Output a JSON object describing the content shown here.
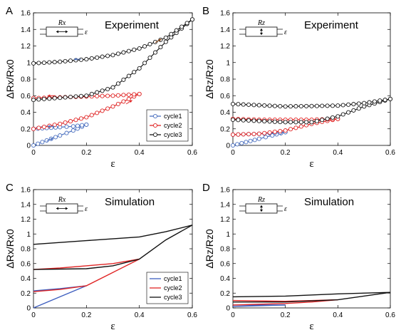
{
  "chart_data": [
    {
      "panel": "A",
      "type": "line",
      "title": "Experiment",
      "xlabel": "ε",
      "ylabel": "ΔRx/Rx0",
      "inset_label": "Rx",
      "inset_strain": "ε",
      "xlim": [
        0,
        0.6
      ],
      "ylim": [
        0,
        1.6
      ],
      "xticks": [
        "0",
        "0.2",
        "0.4",
        "0.6"
      ],
      "yticks": [
        "0",
        "0.2",
        "0.4",
        "0.6",
        "0.8",
        "1",
        "1.2",
        "1.4",
        "1.6"
      ],
      "markers": true,
      "legend": [
        "cycle1",
        "cycle2",
        "cycle3"
      ],
      "series": [
        {
          "name": "cycle1",
          "color": "#4a6fbf",
          "loading": [
            [
              0,
              0
            ],
            [
              0.05,
              0.06
            ],
            [
              0.1,
              0.12
            ],
            [
              0.15,
              0.18
            ],
            [
              0.2,
              0.25
            ]
          ],
          "unloading": [
            [
              0.2,
              0.25
            ],
            [
              0.15,
              0.23
            ],
            [
              0.1,
              0.22
            ],
            [
              0.05,
              0.21
            ],
            [
              0,
              0.2
            ]
          ]
        },
        {
          "name": "cycle2",
          "color": "#e02525",
          "loading": [
            [
              0,
              0.2
            ],
            [
              0.1,
              0.26
            ],
            [
              0.2,
              0.34
            ],
            [
              0.3,
              0.47
            ],
            [
              0.4,
              0.62
            ]
          ],
          "unloading": [
            [
              0.4,
              0.62
            ],
            [
              0.3,
              0.6
            ],
            [
              0.2,
              0.59
            ],
            [
              0.1,
              0.58
            ],
            [
              0,
              0.57
            ]
          ]
        },
        {
          "name": "cycle3",
          "color": "#1a1a1a",
          "loading": [
            [
              0,
              0.55
            ],
            [
              0.2,
              0.6
            ],
            [
              0.3,
              0.7
            ],
            [
              0.4,
              0.93
            ],
            [
              0.5,
              1.25
            ],
            [
              0.6,
              1.52
            ]
          ],
          "unloading": [
            [
              0.6,
              1.52
            ],
            [
              0.5,
              1.3
            ],
            [
              0.4,
              1.17
            ],
            [
              0.3,
              1.09
            ],
            [
              0.2,
              1.04
            ],
            [
              0.1,
              1.01
            ],
            [
              0,
              0.99
            ]
          ]
        }
      ]
    },
    {
      "panel": "B",
      "type": "line",
      "title": "Experiment",
      "xlabel": "ε",
      "ylabel": "ΔRz/Rz0",
      "inset_label": "Rz",
      "inset_strain": "ε",
      "xlim": [
        0,
        0.6
      ],
      "ylim": [
        0,
        1.6
      ],
      "xticks": [
        "0",
        "0.2",
        "0.4",
        "0.6"
      ],
      "yticks": [
        "0",
        "0.2",
        "0.4",
        "0.6",
        "0.8",
        "1",
        "1.2",
        "1.4",
        "1.6"
      ],
      "markers": true,
      "series": [
        {
          "name": "cycle1",
          "color": "#4a6fbf",
          "loading": [
            [
              0,
              0
            ],
            [
              0.05,
              0.04
            ],
            [
              0.1,
              0.08
            ],
            [
              0.15,
              0.12
            ],
            [
              0.2,
              0.16
            ]
          ],
          "unloading": [
            [
              0.2,
              0.16
            ],
            [
              0.1,
              0.14
            ],
            [
              0,
              0.13
            ]
          ]
        },
        {
          "name": "cycle2",
          "color": "#e02525",
          "loading": [
            [
              0,
              0.13
            ],
            [
              0.1,
              0.14
            ],
            [
              0.2,
              0.18
            ],
            [
              0.3,
              0.26
            ],
            [
              0.4,
              0.32
            ]
          ],
          "unloading": [
            [
              0.4,
              0.32
            ],
            [
              0.3,
              0.31
            ],
            [
              0.2,
              0.31
            ],
            [
              0.1,
              0.31
            ],
            [
              0,
              0.32
            ]
          ]
        },
        {
          "name": "cycle3",
          "color": "#1a1a1a",
          "loading": [
            [
              0,
              0.31
            ],
            [
              0.2,
              0.28
            ],
            [
              0.3,
              0.28
            ],
            [
              0.4,
              0.35
            ],
            [
              0.5,
              0.47
            ],
            [
              0.6,
              0.56
            ]
          ],
          "unloading": [
            [
              0.6,
              0.56
            ],
            [
              0.5,
              0.51
            ],
            [
              0.4,
              0.48
            ],
            [
              0.2,
              0.47
            ],
            [
              0,
              0.5
            ]
          ]
        }
      ]
    },
    {
      "panel": "C",
      "type": "line",
      "title": "Simulation",
      "xlabel": "ε",
      "ylabel": "ΔRx/Rx0",
      "inset_label": "Rx",
      "inset_strain": "ε",
      "xlim": [
        0,
        0.6
      ],
      "ylim": [
        0,
        1.6
      ],
      "xticks": [
        "0",
        "0.2",
        "0.4",
        "0.6"
      ],
      "yticks": [
        "0",
        "0.2",
        "0.4",
        "0.6",
        "0.8",
        "1",
        "1.2",
        "1.4",
        "1.6"
      ],
      "markers": false,
      "legend": [
        "cycle1",
        "cycle2",
        "cycle3"
      ],
      "series": [
        {
          "name": "cycle1",
          "color": "#3f5fbf",
          "loading": [
            [
              0,
              0
            ],
            [
              0.1,
              0.15
            ],
            [
              0.2,
              0.3
            ]
          ],
          "unloading": [
            [
              0.2,
              0.3
            ],
            [
              0.1,
              0.26
            ],
            [
              0,
              0.23
            ]
          ]
        },
        {
          "name": "cycle2",
          "color": "#e02525",
          "loading": [
            [
              0,
              0.22
            ],
            [
              0.1,
              0.25
            ],
            [
              0.2,
              0.3
            ],
            [
              0.3,
              0.48
            ],
            [
              0.4,
              0.66
            ]
          ],
          "unloading": [
            [
              0.4,
              0.66
            ],
            [
              0.3,
              0.6
            ],
            [
              0.2,
              0.57
            ],
            [
              0.1,
              0.54
            ],
            [
              0,
              0.52
            ]
          ]
        },
        {
          "name": "cycle3",
          "color": "#111111",
          "loading": [
            [
              0,
              0.52
            ],
            [
              0.2,
              0.53
            ],
            [
              0.3,
              0.57
            ],
            [
              0.4,
              0.66
            ],
            [
              0.5,
              0.92
            ],
            [
              0.6,
              1.12
            ]
          ],
          "unloading": [
            [
              0.6,
              1.12
            ],
            [
              0.5,
              1.03
            ],
            [
              0.4,
              0.96
            ],
            [
              0.2,
              0.91
            ],
            [
              0,
              0.86
            ]
          ]
        }
      ]
    },
    {
      "panel": "D",
      "type": "line",
      "title": "Simulation",
      "xlabel": "ε",
      "ylabel": "ΔRz/Rz0",
      "inset_label": "Rz",
      "inset_strain": "ε",
      "xlim": [
        0,
        0.6
      ],
      "ylim": [
        0,
        1.6
      ],
      "xticks": [
        "0",
        "0.2",
        "0.4",
        "0.6"
      ],
      "yticks": [
        "0",
        "0.2",
        "0.4",
        "0.6",
        "0.8",
        "1",
        "1.2",
        "1.4",
        "1.6"
      ],
      "markers": false,
      "series": [
        {
          "name": "cycle1",
          "color": "#3f5fbf",
          "loading": [
            [
              0,
              0.02
            ],
            [
              0.1,
              0.03
            ],
            [
              0.2,
              0.04
            ]
          ],
          "unloading": [
            [
              0.2,
              0.04
            ],
            [
              0.1,
              0.04
            ],
            [
              0,
              0.04
            ]
          ]
        },
        {
          "name": "cycle2",
          "color": "#e02525",
          "loading": [
            [
              0,
              0.04
            ],
            [
              0.2,
              0.06
            ],
            [
              0.3,
              0.08
            ],
            [
              0.4,
              0.11
            ]
          ],
          "unloading": [
            [
              0.4,
              0.11
            ],
            [
              0.2,
              0.09
            ],
            [
              0,
              0.1
            ]
          ]
        },
        {
          "name": "cycle3",
          "color": "#111111",
          "loading": [
            [
              0,
              0.08
            ],
            [
              0.2,
              0.08
            ],
            [
              0.4,
              0.11
            ],
            [
              0.6,
              0.21
            ]
          ],
          "unloading": [
            [
              0.6,
              0.21
            ],
            [
              0.4,
              0.19
            ],
            [
              0.2,
              0.16
            ],
            [
              0,
              0.15
            ]
          ]
        }
      ]
    }
  ]
}
